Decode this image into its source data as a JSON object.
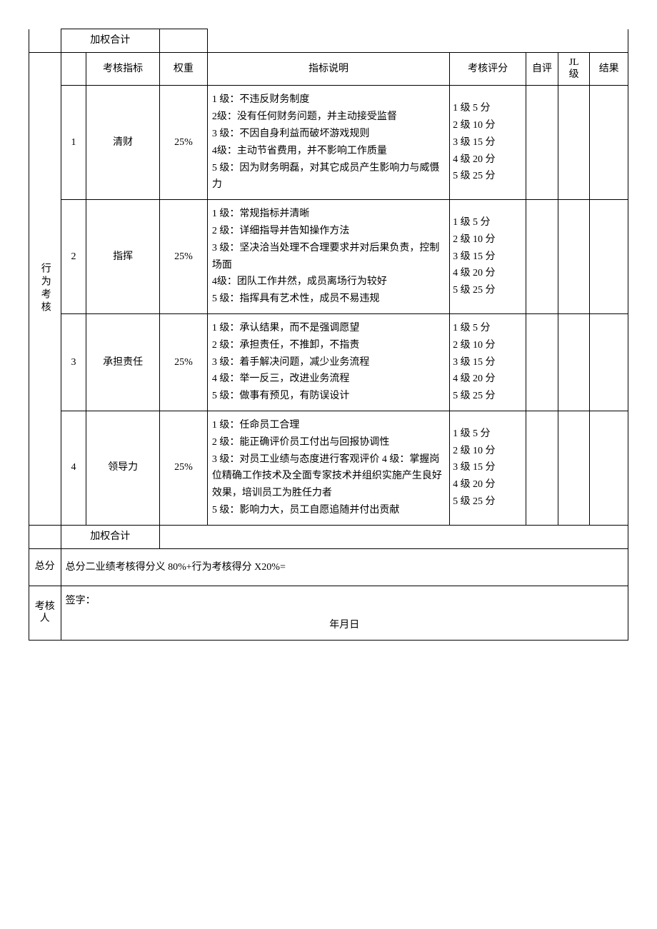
{
  "layout": {
    "page_bg": "#ffffff",
    "border_color": "#000000",
    "font_family": "SimSun",
    "font_size_pt": 11,
    "text_color": "#000000"
  },
  "col_widths_pct": {
    "category": 5,
    "num": 4,
    "indicator": 11.5,
    "weight": 7.5,
    "description": 38,
    "scoring": 12,
    "self": 5,
    "jl": 5,
    "result": 6
  },
  "top_subtotal": "加权合计",
  "headers": {
    "indicator": "考核指标",
    "weight": "权重",
    "description": "指标说明",
    "scoring": "考核评分",
    "self": "自评",
    "jl_line1": "JL",
    "jl_line2": "级",
    "result": "结果"
  },
  "category_label": "行为考核",
  "rows": [
    {
      "num": "1",
      "indicator": "清财",
      "weight": "25%",
      "description": "1 级：不违反财务制度\n2级：没有任何财务问题，并主动接受监督\n3 级：不因自身利益而破坏游戏规则\n4级：主动节省费用，并不影响工作质量\n5 级：因为财务明磊，对其它成员产生影响力与威慑力",
      "scoring": "1 级 5 分\n2 级 10 分\n3 级 15 分\n4 级 20 分\n5 级 25 分"
    },
    {
      "num": "2",
      "indicator": "指挥",
      "weight": "25%",
      "description": "1 级：常规指标并清晰\n2 级：详细指导并告知操作方法\n3 级：坚决洽当处理不合理要求并对后果负责，控制场面\n4级：团队工作井然，成员离场行为较好\n5 级：指挥具有艺术性，成员不易违规",
      "scoring": "1 级 5 分\n2 级 10 分\n3 级 15 分\n4 级 20 分\n5 级 25 分"
    },
    {
      "num": "3",
      "indicator": "承担责任",
      "weight": "25%",
      "description": "1 级：承认结果，而不是强调愿望\n2 级：承担责任，不推卸，不指责\n3 级：着手解决问题，减少业务流程\n4 级：举一反三，改进业务流程\n5 级：做事有预见，有防误设计",
      "scoring": "1 级 5 分\n2 级 10 分\n3 级 15 分\n4 级 20 分\n5 级 25 分"
    },
    {
      "num": "4",
      "indicator": "领导力",
      "weight": "25%",
      "description": "1 级：任命员工合理\n2 级：能正确评价员工付出与回报协调性\n3 级：对员工业绩与态度进行客观评价 4 级：掌握岗位精确工作技术及全面专家技术并组织实施产生良好效果，培训员工为胜任力者\n5 级：影响力大，员工自愿追随并付出贡献",
      "scoring": "1 级 5 分\n2 级 10 分\n3 级 15 分\n4 级 20 分\n5 级 25 分"
    }
  ],
  "bottom_subtotal": "加权合计",
  "total_label": "总分",
  "total_formula": "总分二业绩考核得分义 80%+行为考核得分 X20%=",
  "examiner_label": "考核人",
  "sign_label": "签字：",
  "date_text": "年月日"
}
